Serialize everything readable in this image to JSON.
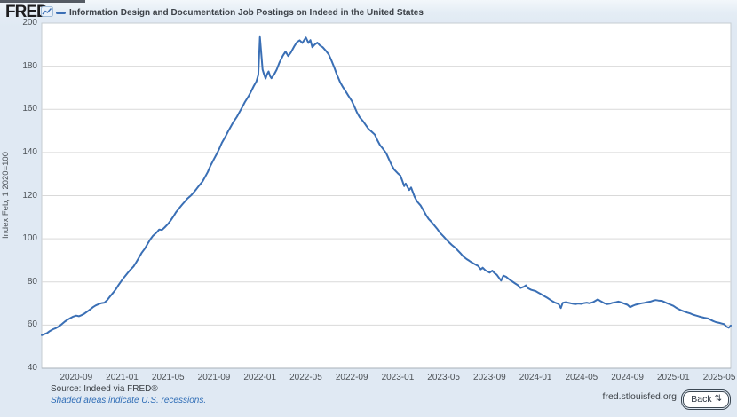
{
  "header": {
    "logo": "FRED",
    "series_legend": {
      "label": "Information Design and Documentation Job Postings on Indeed in the United States",
      "color": "#3a6fb5"
    }
  },
  "colors": {
    "page_bg": "#e0e9f3",
    "plot_bg": "#ffffff",
    "plot_border": "#c6ccd2",
    "gridline": "#d9d9d9",
    "axis_line": "#a9b1b8",
    "line": "#3a6fb5",
    "tick_text": "#4d5257",
    "link_blue": "#2f6db6"
  },
  "footer": {
    "source": "Source: Indeed via FRED®",
    "recessions_note": "Shaded areas indicate U.S. recessions.",
    "site": "fred.stlouisfed.org",
    "back_label": "Back",
    "back_icon": "⇅"
  },
  "chart_data": {
    "type": "line",
    "title": "Information Design and Documentation Job Postings on Indeed in the United States",
    "ylabel": "Index Feb, 1 2020=100",
    "xlabel": "",
    "ylim": [
      40,
      200
    ],
    "x_start": "2020-06",
    "x_end": "2025-06",
    "grid": true,
    "legend_position": "top-left",
    "y_ticks": [
      200,
      180,
      160,
      140,
      120,
      100,
      80,
      60,
      40
    ],
    "x_ticks": [
      "2020-09",
      "2021-01",
      "2021-05",
      "2021-09",
      "2022-01",
      "2022-05",
      "2022-09",
      "2023-01",
      "2023-05",
      "2023-09",
      "2024-01",
      "2024-05",
      "2024-09",
      "2025-01",
      "2025-05"
    ],
    "series_name": "Information Design and Documentation Job Postings on Indeed in the United States",
    "points": [
      [
        "2020-06-01",
        55.3
      ],
      [
        "2020-06-08",
        55.8
      ],
      [
        "2020-06-15",
        56.3
      ],
      [
        "2020-06-22",
        57.2
      ],
      [
        "2020-07-01",
        58.1
      ],
      [
        "2020-07-08",
        58.6
      ],
      [
        "2020-07-15",
        59.3
      ],
      [
        "2020-07-22",
        60.2
      ],
      [
        "2020-08-01",
        61.6
      ],
      [
        "2020-08-08",
        62.4
      ],
      [
        "2020-08-15",
        63.1
      ],
      [
        "2020-08-22",
        63.8
      ],
      [
        "2020-09-01",
        64.4
      ],
      [
        "2020-09-08",
        64.1
      ],
      [
        "2020-09-15",
        64.6
      ],
      [
        "2020-09-22",
        65.2
      ],
      [
        "2020-10-01",
        66.4
      ],
      [
        "2020-10-08",
        67.3
      ],
      [
        "2020-10-15",
        68.3
      ],
      [
        "2020-10-22",
        69.1
      ],
      [
        "2020-11-01",
        69.8
      ],
      [
        "2020-11-08",
        70.2
      ],
      [
        "2020-11-15",
        70.4
      ],
      [
        "2020-11-22",
        71.5
      ],
      [
        "2020-12-01",
        73.6
      ],
      [
        "2020-12-08",
        75.1
      ],
      [
        "2020-12-15",
        76.7
      ],
      [
        "2020-12-22",
        78.6
      ],
      [
        "2021-01-01",
        80.9
      ],
      [
        "2021-01-08",
        82.5
      ],
      [
        "2021-01-15",
        84.0
      ],
      [
        "2021-01-22",
        85.5
      ],
      [
        "2021-02-01",
        87.2
      ],
      [
        "2021-02-08",
        89.1
      ],
      [
        "2021-02-15",
        91.2
      ],
      [
        "2021-02-22",
        93.4
      ],
      [
        "2021-03-01",
        95.6
      ],
      [
        "2021-03-08",
        97.8
      ],
      [
        "2021-03-15",
        99.8
      ],
      [
        "2021-03-22",
        101.4
      ],
      [
        "2021-04-01",
        102.9
      ],
      [
        "2021-04-08",
        104.3
      ],
      [
        "2021-04-15",
        104.1
      ],
      [
        "2021-04-22",
        105.2
      ],
      [
        "2021-05-01",
        106.9
      ],
      [
        "2021-05-08",
        108.5
      ],
      [
        "2021-05-15",
        110.3
      ],
      [
        "2021-05-22",
        112.3
      ],
      [
        "2021-06-01",
        114.4
      ],
      [
        "2021-06-08",
        115.9
      ],
      [
        "2021-06-15",
        117.3
      ],
      [
        "2021-06-22",
        118.7
      ],
      [
        "2021-07-01",
        120.1
      ],
      [
        "2021-07-08",
        121.5
      ],
      [
        "2021-07-15",
        123.0
      ],
      [
        "2021-07-22",
        124.6
      ],
      [
        "2021-08-01",
        126.6
      ],
      [
        "2021-08-08",
        128.7
      ],
      [
        "2021-08-15",
        131.0
      ],
      [
        "2021-08-22",
        133.8
      ],
      [
        "2021-09-01",
        137.0
      ],
      [
        "2021-09-08",
        139.3
      ],
      [
        "2021-09-15",
        141.8
      ],
      [
        "2021-09-22",
        144.5
      ],
      [
        "2021-10-01",
        147.4
      ],
      [
        "2021-10-08",
        149.8
      ],
      [
        "2021-10-15",
        152.0
      ],
      [
        "2021-10-22",
        154.2
      ],
      [
        "2021-11-01",
        156.6
      ],
      [
        "2021-11-08",
        158.8
      ],
      [
        "2021-11-15",
        161.0
      ],
      [
        "2021-11-22",
        163.4
      ],
      [
        "2021-12-01",
        166.0
      ],
      [
        "2021-12-08",
        168.3
      ],
      [
        "2021-12-15",
        170.8
      ],
      [
        "2021-12-22",
        172.9
      ],
      [
        "2021-12-27",
        176.0
      ],
      [
        "2022-01-01",
        193.5
      ],
      [
        "2022-01-04",
        187.0
      ],
      [
        "2022-01-08",
        178.5
      ],
      [
        "2022-01-12",
        176.2
      ],
      [
        "2022-01-16",
        174.3
      ],
      [
        "2022-01-20",
        176.3
      ],
      [
        "2022-01-24",
        177.6
      ],
      [
        "2022-01-28",
        175.4
      ],
      [
        "2022-02-01",
        174.4
      ],
      [
        "2022-02-08",
        176.1
      ],
      [
        "2022-02-15",
        178.4
      ],
      [
        "2022-02-22",
        181.6
      ],
      [
        "2022-03-01",
        184.9
      ],
      [
        "2022-03-08",
        186.8
      ],
      [
        "2022-03-15",
        184.7
      ],
      [
        "2022-03-22",
        186.3
      ],
      [
        "2022-04-01",
        189.3
      ],
      [
        "2022-04-08",
        191.2
      ],
      [
        "2022-04-15",
        192.0
      ],
      [
        "2022-04-22",
        190.8
      ],
      [
        "2022-05-01",
        193.3
      ],
      [
        "2022-05-08",
        190.8
      ],
      [
        "2022-05-13",
        192.1
      ],
      [
        "2022-05-18",
        188.8
      ],
      [
        "2022-05-24",
        190.0
      ],
      [
        "2022-06-01",
        190.9
      ],
      [
        "2022-06-08",
        189.6
      ],
      [
        "2022-06-15",
        188.8
      ],
      [
        "2022-06-22",
        187.5
      ],
      [
        "2022-07-01",
        185.4
      ],
      [
        "2022-07-08",
        182.6
      ],
      [
        "2022-07-15",
        179.6
      ],
      [
        "2022-07-22",
        176.2
      ],
      [
        "2022-08-01",
        172.4
      ],
      [
        "2022-08-08",
        170.3
      ],
      [
        "2022-08-15",
        168.4
      ],
      [
        "2022-08-22",
        166.4
      ],
      [
        "2022-09-01",
        163.9
      ],
      [
        "2022-09-08",
        161.2
      ],
      [
        "2022-09-15",
        158.4
      ],
      [
        "2022-09-22",
        156.3
      ],
      [
        "2022-10-01",
        154.4
      ],
      [
        "2022-10-08",
        152.6
      ],
      [
        "2022-10-15",
        150.9
      ],
      [
        "2022-10-22",
        149.8
      ],
      [
        "2022-11-01",
        148.3
      ],
      [
        "2022-11-08",
        145.7
      ],
      [
        "2022-11-15",
        143.4
      ],
      [
        "2022-11-22",
        141.9
      ],
      [
        "2022-12-01",
        139.6
      ],
      [
        "2022-12-08",
        136.9
      ],
      [
        "2022-12-15",
        134.2
      ],
      [
        "2022-12-22",
        132.1
      ],
      [
        "2023-01-01",
        130.4
      ],
      [
        "2023-01-08",
        129.3
      ],
      [
        "2023-01-14",
        126.4
      ],
      [
        "2023-01-18",
        124.4
      ],
      [
        "2023-01-22",
        125.6
      ],
      [
        "2023-01-28",
        123.6
      ],
      [
        "2023-02-01",
        122.6
      ],
      [
        "2023-02-06",
        123.8
      ],
      [
        "2023-02-10",
        121.9
      ],
      [
        "2023-02-15",
        119.6
      ],
      [
        "2023-02-22",
        117.3
      ],
      [
        "2023-03-01",
        115.4
      ],
      [
        "2023-03-08",
        113.2
      ],
      [
        "2023-03-15",
        111.0
      ],
      [
        "2023-03-22",
        109.2
      ],
      [
        "2023-04-01",
        107.4
      ],
      [
        "2023-04-08",
        105.9
      ],
      [
        "2023-04-15",
        104.4
      ],
      [
        "2023-04-22",
        102.7
      ],
      [
        "2023-05-01",
        101.0
      ],
      [
        "2023-05-08",
        99.7
      ],
      [
        "2023-05-15",
        98.4
      ],
      [
        "2023-05-22",
        97.2
      ],
      [
        "2023-06-01",
        95.9
      ],
      [
        "2023-06-08",
        94.6
      ],
      [
        "2023-06-15",
        93.3
      ],
      [
        "2023-06-22",
        91.9
      ],
      [
        "2023-07-01",
        90.6
      ],
      [
        "2023-07-08",
        89.8
      ],
      [
        "2023-07-15",
        89.0
      ],
      [
        "2023-07-22",
        88.3
      ],
      [
        "2023-08-01",
        87.4
      ],
      [
        "2023-08-08",
        85.8
      ],
      [
        "2023-08-13",
        86.6
      ],
      [
        "2023-08-20",
        85.4
      ],
      [
        "2023-09-01",
        84.3
      ],
      [
        "2023-09-08",
        85.2
      ],
      [
        "2023-09-14",
        84.1
      ],
      [
        "2023-09-20",
        83.3
      ],
      [
        "2023-10-01",
        80.6
      ],
      [
        "2023-10-07",
        82.9
      ],
      [
        "2023-10-14",
        82.4
      ],
      [
        "2023-10-22",
        81.2
      ],
      [
        "2023-11-01",
        80.1
      ],
      [
        "2023-11-08",
        79.3
      ],
      [
        "2023-11-15",
        78.5
      ],
      [
        "2023-11-22",
        77.2
      ],
      [
        "2023-12-01",
        77.8
      ],
      [
        "2023-12-06",
        78.4
      ],
      [
        "2023-12-12",
        77.0
      ],
      [
        "2023-12-20",
        76.3
      ],
      [
        "2024-01-01",
        75.8
      ],
      [
        "2024-01-08",
        75.1
      ],
      [
        "2024-01-15",
        74.4
      ],
      [
        "2024-01-22",
        73.6
      ],
      [
        "2024-02-01",
        72.7
      ],
      [
        "2024-02-08",
        71.9
      ],
      [
        "2024-02-15",
        71.1
      ],
      [
        "2024-02-22",
        70.4
      ],
      [
        "2024-03-01",
        69.8
      ],
      [
        "2024-03-07",
        67.9
      ],
      [
        "2024-03-12",
        70.3
      ],
      [
        "2024-03-20",
        70.6
      ],
      [
        "2024-04-01",
        70.2
      ],
      [
        "2024-04-08",
        69.9
      ],
      [
        "2024-04-15",
        69.7
      ],
      [
        "2024-04-22",
        70.0
      ],
      [
        "2024-05-01",
        69.8
      ],
      [
        "2024-05-08",
        70.2
      ],
      [
        "2024-05-15",
        70.4
      ],
      [
        "2024-05-22",
        70.1
      ],
      [
        "2024-06-01",
        70.6
      ],
      [
        "2024-06-08",
        71.3
      ],
      [
        "2024-06-14",
        71.9
      ],
      [
        "2024-06-20",
        71.2
      ],
      [
        "2024-07-01",
        70.1
      ],
      [
        "2024-07-08",
        69.7
      ],
      [
        "2024-07-15",
        69.9
      ],
      [
        "2024-07-22",
        70.3
      ],
      [
        "2024-08-01",
        70.6
      ],
      [
        "2024-08-08",
        70.9
      ],
      [
        "2024-08-15",
        70.5
      ],
      [
        "2024-08-22",
        70.0
      ],
      [
        "2024-09-01",
        69.4
      ],
      [
        "2024-09-08",
        68.3
      ],
      [
        "2024-09-15",
        68.9
      ],
      [
        "2024-09-22",
        69.4
      ],
      [
        "2024-10-01",
        69.8
      ],
      [
        "2024-10-08",
        70.1
      ],
      [
        "2024-10-15",
        70.3
      ],
      [
        "2024-10-22",
        70.6
      ],
      [
        "2024-11-01",
        70.9
      ],
      [
        "2024-11-08",
        71.3
      ],
      [
        "2024-11-15",
        71.6
      ],
      [
        "2024-11-22",
        71.4
      ],
      [
        "2024-12-01",
        71.2
      ],
      [
        "2024-12-08",
        70.7
      ],
      [
        "2024-12-15",
        70.1
      ],
      [
        "2024-12-22",
        69.6
      ],
      [
        "2025-01-01",
        68.9
      ],
      [
        "2025-01-08",
        68.1
      ],
      [
        "2025-01-15",
        67.4
      ],
      [
        "2025-01-22",
        66.8
      ],
      [
        "2025-02-01",
        66.2
      ],
      [
        "2025-02-08",
        65.8
      ],
      [
        "2025-02-15",
        65.4
      ],
      [
        "2025-02-22",
        64.9
      ],
      [
        "2025-03-01",
        64.4
      ],
      [
        "2025-03-08",
        64.0
      ],
      [
        "2025-03-15",
        63.7
      ],
      [
        "2025-03-22",
        63.4
      ],
      [
        "2025-04-01",
        63.1
      ],
      [
        "2025-04-08",
        62.5
      ],
      [
        "2025-04-15",
        61.9
      ],
      [
        "2025-04-22",
        61.4
      ],
      [
        "2025-05-01",
        61.0
      ],
      [
        "2025-05-08",
        60.7
      ],
      [
        "2025-05-14",
        60.4
      ],
      [
        "2025-05-20",
        59.3
      ],
      [
        "2025-05-26",
        58.8
      ],
      [
        "2025-06-01",
        59.8
      ]
    ]
  }
}
